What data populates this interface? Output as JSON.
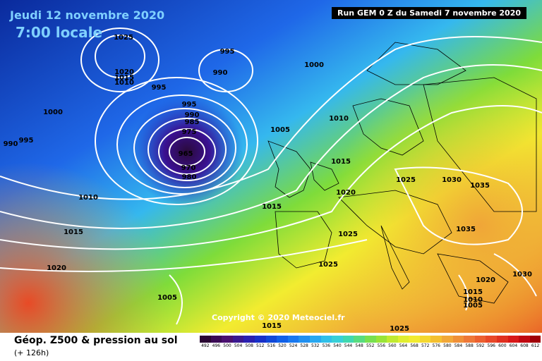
{
  "map": {
    "valid_date": "Jeudi 12 novembre 2020",
    "local_time": "7:00 locale",
    "run_info": "Run GEM 0 Z du Samedi 7 novembre 2020",
    "copyright": "Copyright © 2020 Meteociel.fr",
    "product": "Géop. Z500 & pression au sol",
    "lead_time": "(+ 126h)"
  },
  "colors": {
    "low_center": "#2a0a3a",
    "deep_blue": "#0a2a9c",
    "blue": "#1f68e8",
    "cyan": "#35b8ee",
    "green": "#7edc3a",
    "yellow": "#f2ec30",
    "orange": "#f0a238",
    "red": "#e84a26",
    "isobar": "#ffffff",
    "coastline": "#000000"
  },
  "isobar_labels": [
    "1025",
    "995",
    "990",
    "1020",
    "1015",
    "1010",
    "995",
    "1000",
    "1000",
    "990",
    "995",
    "995",
    "990",
    "985",
    "975",
    "965",
    "970",
    "980",
    "1005",
    "1010",
    "1015",
    "1010",
    "1015",
    "1025",
    "1030",
    "1035",
    "1020",
    "1035",
    "1025",
    "1025",
    "1020",
    "1030",
    "1015",
    "1010",
    "1005",
    "1015",
    "1020",
    "1015",
    "1025",
    "1005"
  ],
  "color_scale": {
    "labels": [
      "492",
      "496",
      "500",
      "504",
      "508",
      "512",
      "516",
      "520",
      "524",
      "528",
      "532",
      "536",
      "540",
      "544",
      "548",
      "552",
      "556",
      "560",
      "564",
      "568",
      "572",
      "576",
      "580",
      "584",
      "588",
      "592",
      "596",
      "600",
      "604",
      "608",
      "612"
    ],
    "colors": [
      "#2a0633",
      "#3a0a55",
      "#4a1070",
      "#3a1890",
      "#2a20b0",
      "#1830c8",
      "#1048d8",
      "#1060e8",
      "#1878f0",
      "#2090f0",
      "#28a8f0",
      "#30c0e8",
      "#38d0d8",
      "#40d8b0",
      "#58dc80",
      "#78e050",
      "#98e438",
      "#c0ea30",
      "#e0ee30",
      "#f2ec30",
      "#f4d830",
      "#f4c030",
      "#f2a838",
      "#f09038",
      "#ee7838",
      "#ec6030",
      "#e84828",
      "#e03020",
      "#d81818",
      "#c00810",
      "#a00008"
    ]
  }
}
